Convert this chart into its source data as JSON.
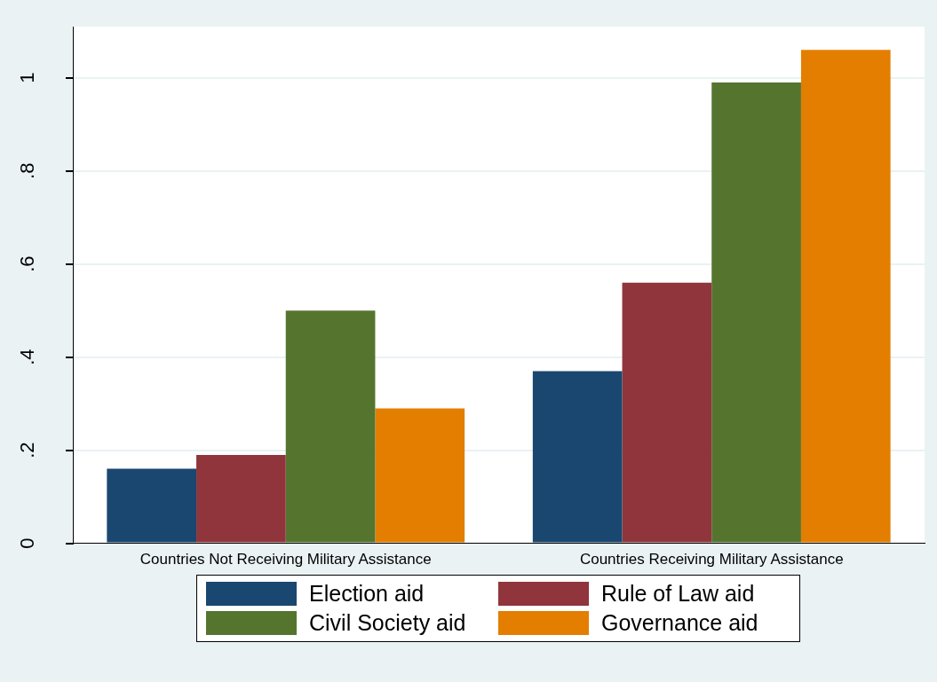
{
  "chart_data": {
    "type": "bar",
    "categories": [
      "Countries Not Receiving Military Assistance",
      "Countries Receiving Military Assistance"
    ],
    "series": [
      {
        "name": "Election aid",
        "color": "#1a476f",
        "values": [
          0.16,
          0.37
        ]
      },
      {
        "name": "Rule of Law aid",
        "color": "#90353b",
        "values": [
          0.19,
          0.56
        ]
      },
      {
        "name": "Civil Society aid",
        "color": "#55752f",
        "values": [
          0.5,
          0.99
        ]
      },
      {
        "name": "Governance aid",
        "color": "#e37e00",
        "values": [
          0.29,
          1.06
        ]
      }
    ],
    "ylim": [
      0,
      1.11
    ],
    "yticks": [
      0,
      {
        "value": 0.2,
        "label": ".2"
      },
      {
        "value": 0.4,
        "label": ".4"
      },
      {
        "value": 0.6,
        "label": ".6"
      },
      {
        "value": 0.8,
        "label": ".8"
      },
      1
    ],
    "grid": "y",
    "legend": "bottom"
  }
}
